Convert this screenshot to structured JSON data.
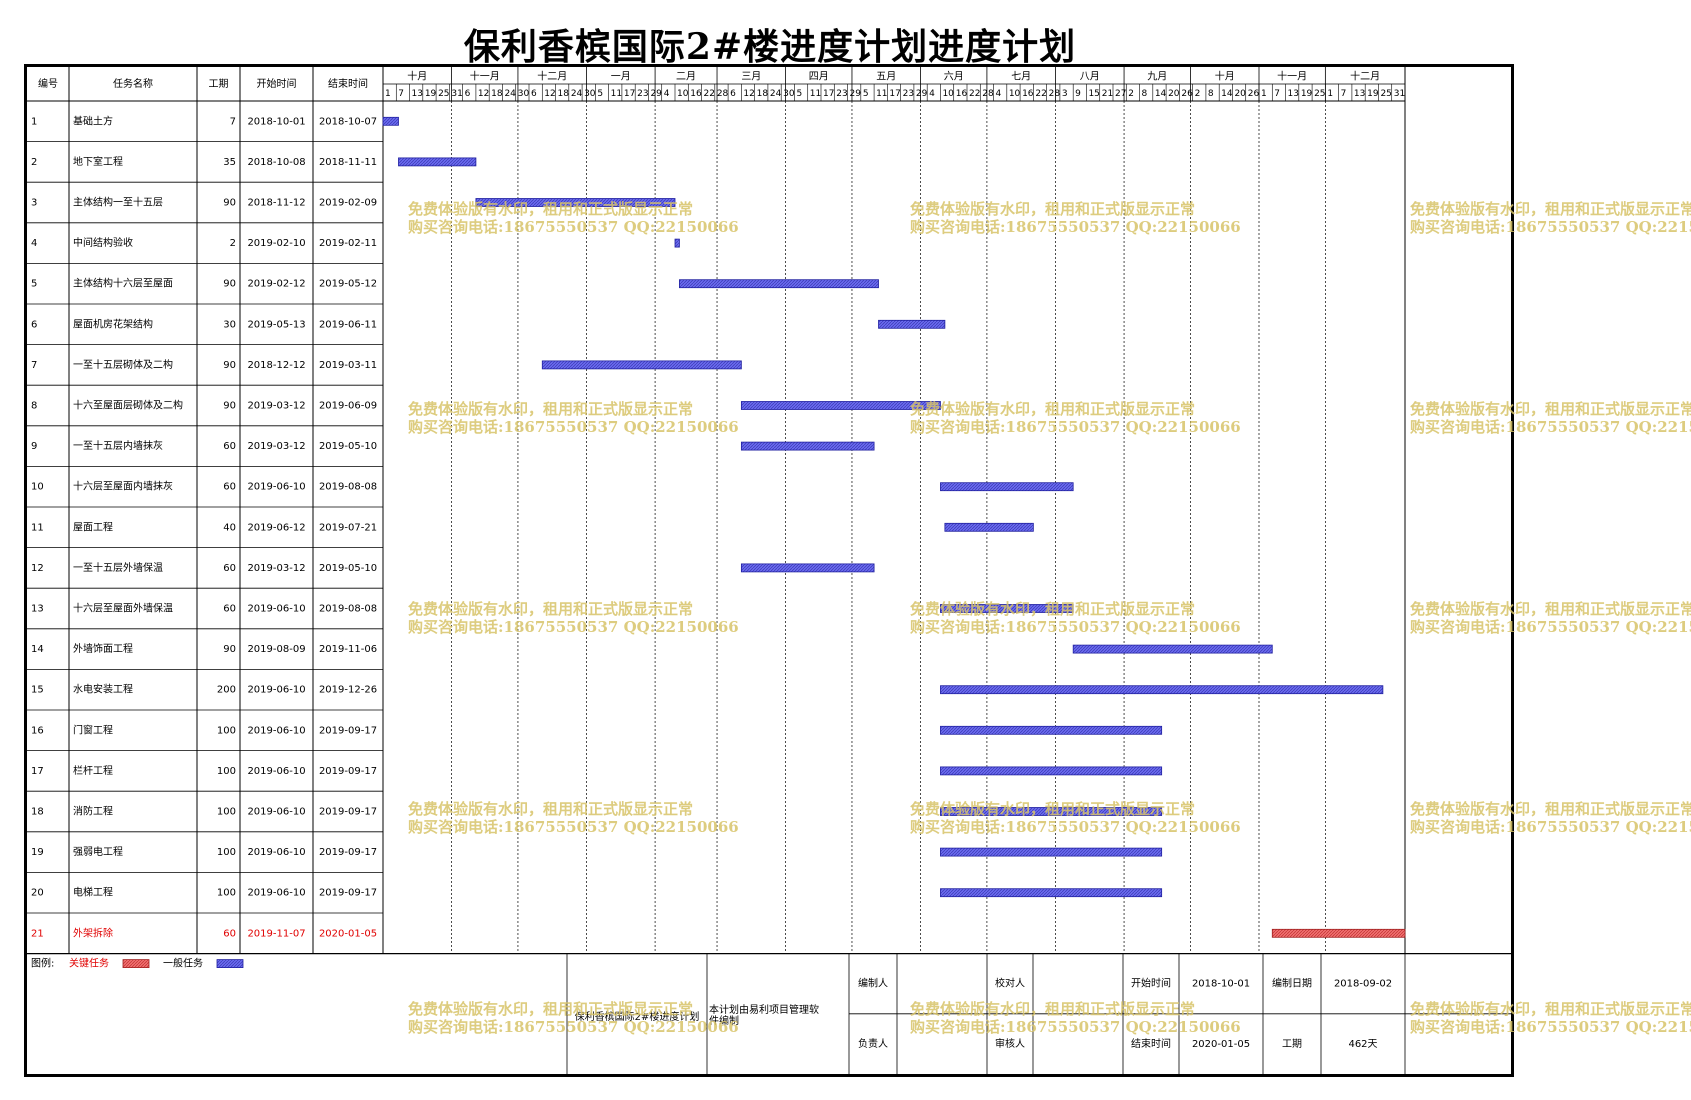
{
  "title": "保利香槟国际2#楼进度计划进度计划",
  "headers": {
    "id": "编号",
    "name": "任务名称",
    "duration": "工期",
    "start": "开始时间",
    "end": "结束时间"
  },
  "months": [
    "十月",
    "十一月",
    "十二月",
    "一月",
    "二月",
    "三月",
    "四月",
    "五月",
    "六月",
    "七月",
    "八月",
    "九月",
    "十月",
    "十一月",
    "十二月"
  ],
  "tick_labels": [
    [
      "1",
      "7",
      "13",
      "19",
      "25",
      "31"
    ],
    [
      "6",
      "12",
      "18",
      "24",
      "30"
    ],
    [
      "6",
      "12",
      "18",
      "24",
      "30"
    ],
    [
      "5",
      "11",
      "17",
      "23",
      "29"
    ],
    [
      "4",
      "10",
      "16",
      "22",
      "28"
    ],
    [
      "6",
      "12",
      "18",
      "24",
      "30"
    ],
    [
      "5",
      "11",
      "17",
      "23",
      "29"
    ],
    [
      "5",
      "11",
      "17",
      "23",
      "29"
    ],
    [
      "4",
      "10",
      "16",
      "22",
      "28"
    ],
    [
      "4",
      "10",
      "16",
      "22",
      "28"
    ],
    [
      "3",
      "9",
      "15",
      "21",
      "27"
    ],
    [
      "2",
      "8",
      "14",
      "20",
      "26"
    ],
    [
      "2",
      "8",
      "14",
      "20",
      "26"
    ],
    [
      "1",
      "7",
      "13",
      "19",
      "25"
    ],
    [
      "1",
      "7",
      "13",
      "19",
      "25",
      "31"
    ]
  ],
  "chart_data": {
    "type": "gantt",
    "x_start": "2018-10-01",
    "x_end": "2020-01-05",
    "tasks": [
      {
        "id": "1",
        "name": "基础土方",
        "duration": "7",
        "start": "2018-10-01",
        "end": "2018-10-07",
        "critical": false
      },
      {
        "id": "2",
        "name": "地下室工程",
        "duration": "35",
        "start": "2018-10-08",
        "end": "2018-11-11",
        "critical": false
      },
      {
        "id": "3",
        "name": "主体结构一至十五层",
        "duration": "90",
        "start": "2018-11-12",
        "end": "2019-02-09",
        "critical": false
      },
      {
        "id": "4",
        "name": "中间结构验收",
        "duration": "2",
        "start": "2019-02-10",
        "end": "2019-02-11",
        "critical": false
      },
      {
        "id": "5",
        "name": "主体结构十六层至屋面",
        "duration": "90",
        "start": "2019-02-12",
        "end": "2019-05-12",
        "critical": false
      },
      {
        "id": "6",
        "name": "屋面机房花架结构",
        "duration": "30",
        "start": "2019-05-13",
        "end": "2019-06-11",
        "critical": false
      },
      {
        "id": "7",
        "name": "一至十五层砌体及二构",
        "duration": "90",
        "start": "2018-12-12",
        "end": "2019-03-11",
        "critical": false
      },
      {
        "id": "8",
        "name": "十六至屋面层砌体及二构",
        "duration": "90",
        "start": "2019-03-12",
        "end": "2019-06-09",
        "critical": false
      },
      {
        "id": "9",
        "name": "一至十五层内墙抹灰",
        "duration": "60",
        "start": "2019-03-12",
        "end": "2019-05-10",
        "critical": false
      },
      {
        "id": "10",
        "name": "十六层至屋面内墙抹灰",
        "duration": "60",
        "start": "2019-06-10",
        "end": "2019-08-08",
        "critical": false
      },
      {
        "id": "11",
        "name": "屋面工程",
        "duration": "40",
        "start": "2019-06-12",
        "end": "2019-07-21",
        "critical": false
      },
      {
        "id": "12",
        "name": "一至十五层外墙保温",
        "duration": "60",
        "start": "2019-03-12",
        "end": "2019-05-10",
        "critical": false
      },
      {
        "id": "13",
        "name": "十六层至屋面外墙保温",
        "duration": "60",
        "start": "2019-06-10",
        "end": "2019-08-08",
        "critical": false
      },
      {
        "id": "14",
        "name": "外墙饰面工程",
        "duration": "90",
        "start": "2019-08-09",
        "end": "2019-11-06",
        "critical": false
      },
      {
        "id": "15",
        "name": "水电安装工程",
        "duration": "200",
        "start": "2019-06-10",
        "end": "2019-12-26",
        "critical": false
      },
      {
        "id": "16",
        "name": "门窗工程",
        "duration": "100",
        "start": "2019-06-10",
        "end": "2019-09-17",
        "critical": false
      },
      {
        "id": "17",
        "name": "栏杆工程",
        "duration": "100",
        "start": "2019-06-10",
        "end": "2019-09-17",
        "critical": false
      },
      {
        "id": "18",
        "name": "消防工程",
        "duration": "100",
        "start": "2019-06-10",
        "end": "2019-09-17",
        "critical": false
      },
      {
        "id": "19",
        "name": "强弱电工程",
        "duration": "100",
        "start": "2019-06-10",
        "end": "2019-09-17",
        "critical": false
      },
      {
        "id": "20",
        "name": "电梯工程",
        "duration": "100",
        "start": "2019-06-10",
        "end": "2019-09-17",
        "critical": false
      },
      {
        "id": "21",
        "name": "外架拆除",
        "duration": "60",
        "start": "2019-11-07",
        "end": "2020-01-05",
        "critical": true
      }
    ],
    "colors": {
      "normal": "#5a5ae0",
      "critical": "#e85a5a",
      "critical_text": "#e00000"
    }
  },
  "legend": {
    "label": "图例:",
    "critical": "关键任务",
    "normal": "一般任务"
  },
  "footer": {
    "plan_name": "保利香槟国际2#楼进度计划",
    "software_note": "本计划由易利项目管理软件编制",
    "compiler_label": "编制人",
    "checker_label": "校对人",
    "owner_label": "负责人",
    "reviewer_label": "审核人",
    "start_label": "开始时间",
    "start_value": "2018-10-01",
    "end_label": "结束时间",
    "end_value": "2020-01-05",
    "date_label": "编制日期",
    "date_value": "2018-09-02",
    "duration_label": "工期",
    "duration_value": "462天"
  },
  "watermark": {
    "line1": "免费体验版有水印，租用和正式版显示正常",
    "line2": "购买咨询电话:18675550537 QQ:22150066"
  }
}
